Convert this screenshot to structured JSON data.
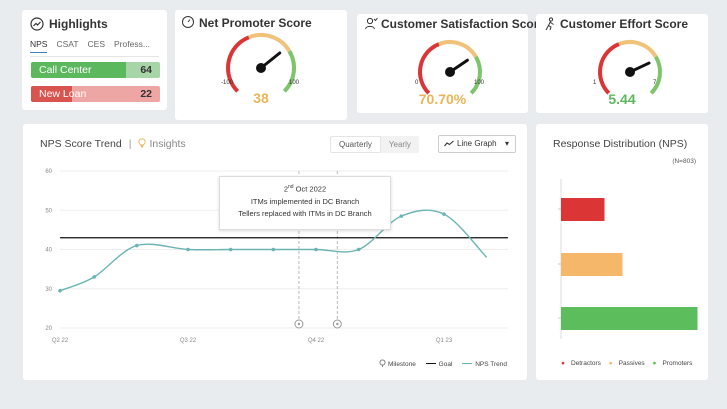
{
  "highlights": {
    "title": "Highlights",
    "tabs": [
      "NPS",
      "CSAT",
      "CES",
      "Profess..."
    ],
    "rows": [
      {
        "label": "Call Center",
        "value": "64",
        "fraction": 0.64
      },
      {
        "label": "New Loan",
        "value": "22",
        "fraction": 0.22
      }
    ]
  },
  "gauges": {
    "nps": {
      "title": "Net Promoter Score",
      "min": "-100",
      "max": "100",
      "value": "38",
      "needle_fraction": 0.69,
      "value_color": "#e9b558"
    },
    "csat": {
      "title": "Customer Satisfaction Score",
      "min": "0",
      "max": "100",
      "value": "70.70%",
      "needle_fraction": 0.707,
      "value_color": "#e9b558"
    },
    "ces": {
      "title": "Customer Effort Score",
      "min": "1",
      "max": "7",
      "value": "5.44",
      "needle_fraction": 0.74,
      "value_color": "#5cb85c"
    }
  },
  "trend": {
    "title": "NPS Score Trend",
    "separator": "|",
    "insights_label": "Insights",
    "period_options": [
      "Quarterly",
      "Yearly"
    ],
    "active_period": "Quarterly",
    "graph_type": "Line Graph",
    "tooltip": {
      "date_day": "2",
      "date_suffix": "nd",
      "date_rest": " Oct 2022",
      "line1": "ITMs implemented in DC Branch",
      "line2": "Tellers replaced with ITMs in DC Branch"
    },
    "legend": {
      "milestone": "Milestone",
      "goal": "Goal",
      "trend": "NPS Trend"
    }
  },
  "distribution": {
    "title": "Response Distribution (NPS)",
    "n_label": "(N=803)",
    "legend": [
      "Detractors",
      "Passives",
      "Promoters"
    ]
  },
  "chart_data": [
    {
      "type": "line",
      "title": "NPS Score Trend",
      "ylim": [
        20,
        60
      ],
      "yticks": [
        20,
        30,
        40,
        50,
        60
      ],
      "xtick_labels": [
        "Q2 22",
        "Q3 22",
        "Q4 22",
        "Q1 23"
      ],
      "xtick_positions": [
        0,
        3,
        6,
        9
      ],
      "goal": 43,
      "series": [
        {
          "name": "NPS Trend",
          "color": "#6cb4b4",
          "x": [
            0,
            0.8,
            1.8,
            3,
            4,
            5,
            6,
            7,
            8,
            9,
            10
          ],
          "y": [
            29.5,
            33,
            41,
            40,
            40,
            40,
            40,
            40,
            48.5,
            49,
            38
          ]
        }
      ],
      "milestones_x": [
        5.6,
        6.5
      ]
    },
    {
      "type": "bar",
      "title": "Response Distribution (NPS)",
      "categories": [
        "Detractors",
        "Passives",
        "Promoters"
      ],
      "values": [
        0.29,
        0.41,
        0.91
      ],
      "colors": [
        "#dc3535",
        "#f5b76a",
        "#5cbd5c"
      ]
    }
  ],
  "colors": {
    "red": "#dc3535",
    "orange": "#f5b76a",
    "green": "#5cbd5c",
    "teal": "#6cb4b4",
    "hl_green": "#5cb85c",
    "hl_red": "#d9534f"
  }
}
